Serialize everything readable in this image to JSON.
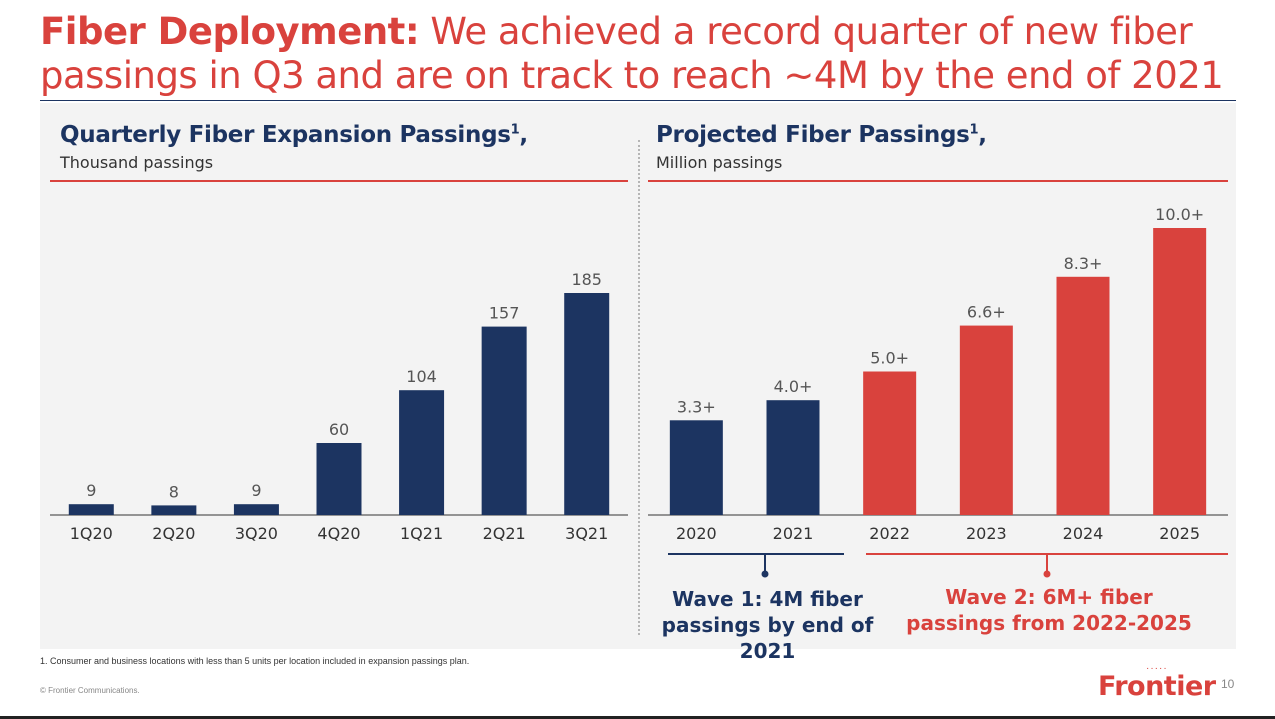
{
  "slide": {
    "title_bold": "Fiber Deployment:",
    "title_rest": " We achieved a record quarter of new fiber passings in Q3 and are on track to reach ~4M by the end of 2021",
    "footnote": "1. Consumer and business locations with less than 5 units per location included in expansion passings plan.",
    "copyright": "© Frontier Communications.",
    "page_number": "10",
    "logo_text": "Frontier",
    "logo_dots": "·····"
  },
  "colors": {
    "navy": "#1c3461",
    "red": "#d9423d",
    "label": "#555555",
    "axis": "#333333"
  },
  "chart_data": [
    {
      "type": "bar",
      "title": "Quarterly Fiber Expansion Passings",
      "title_superscript": "1",
      "title_suffix": ",",
      "subtitle": "Thousand passings",
      "categories": [
        "1Q20",
        "2Q20",
        "3Q20",
        "4Q20",
        "1Q21",
        "2Q21",
        "3Q21"
      ],
      "values": [
        9,
        8,
        9,
        60,
        104,
        157,
        185
      ],
      "labels": [
        "9",
        "8",
        "9",
        "60",
        "104",
        "157",
        "185"
      ],
      "bar_colors": [
        "navy",
        "navy",
        "navy",
        "navy",
        "navy",
        "navy",
        "navy"
      ],
      "ylim": [
        0,
        185
      ],
      "grid": false,
      "legend": "none"
    },
    {
      "type": "bar",
      "title": "Projected Fiber Passings",
      "title_superscript": "1",
      "title_suffix": ",",
      "subtitle": "Million passings",
      "categories": [
        "2020",
        "2021",
        "2022",
        "2023",
        "2024",
        "2025"
      ],
      "values": [
        3.3,
        4.0,
        5.0,
        6.6,
        8.3,
        10.0
      ],
      "labels": [
        "3.3+",
        "4.0+",
        "5.0+",
        "6.6+",
        "8.3+",
        "10.0+"
      ],
      "bar_colors": [
        "navy",
        "navy",
        "red",
        "red",
        "red",
        "red"
      ],
      "ylim": [
        0,
        10.0
      ],
      "grid": false,
      "legend": "none",
      "annotations": [
        {
          "text": "Wave 1: 4M fiber passings by end of 2021",
          "color": "navy",
          "categories": [
            "2020",
            "2021"
          ]
        },
        {
          "text": "Wave 2: 6M+ fiber passings from 2022-2025",
          "color": "red",
          "categories": [
            "2022",
            "2023",
            "2024",
            "2025"
          ]
        }
      ]
    }
  ]
}
